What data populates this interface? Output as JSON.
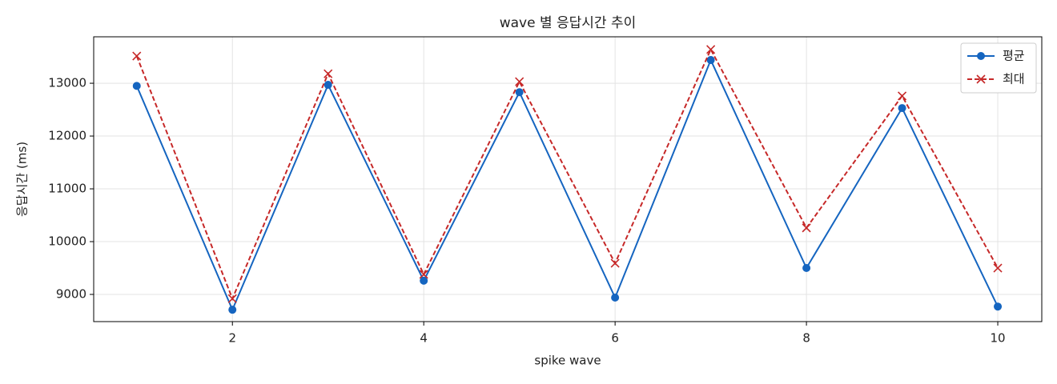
{
  "chart_data": {
    "type": "line",
    "title": "wave 별 응답시간 추이",
    "x_label": "spike wave",
    "y_label": "응답시간 (ms)",
    "x": [
      1,
      2,
      3,
      4,
      5,
      6,
      7,
      8,
      9,
      10
    ],
    "series": [
      {
        "name": "평균",
        "color": "#1565c0",
        "marker": "o",
        "dash": false,
        "values": [
          12950,
          8710,
          12970,
          9260,
          12830,
          8940,
          13440,
          9500,
          12530,
          8770
        ]
      },
      {
        "name": "최대",
        "color": "#c62828",
        "marker": "x",
        "dash": true,
        "values": [
          13515,
          8920,
          13180,
          9380,
          13030,
          9590,
          13640,
          10260,
          12760,
          9500
        ]
      }
    ],
    "xlim": [
      0.55,
      10.46
    ],
    "ylim": [
      8485,
      13880
    ],
    "xticks": [
      2,
      4,
      6,
      8,
      10
    ],
    "yticks": [
      9000,
      10000,
      11000,
      12000,
      13000
    ],
    "grid": true,
    "legend": "upper right"
  }
}
